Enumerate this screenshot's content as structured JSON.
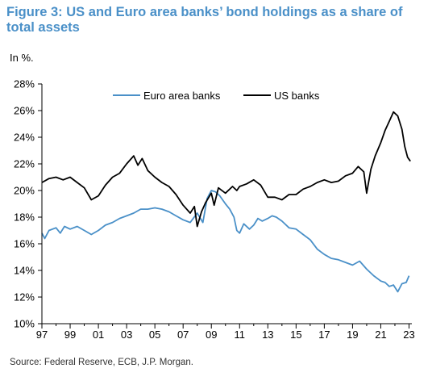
{
  "figure": {
    "title": "Figure 3: US and Euro area banks’ bond holdings as a share of total assets",
    "subtitle": "In %.",
    "source": "Source: Federal Reserve, ECB, J.P. Morgan."
  },
  "chart_data": {
    "type": "line",
    "title": "Figure 3: US and Euro area banks’ bond holdings as a share of total assets",
    "xlabel": "",
    "ylabel": "",
    "y_unit": "%",
    "xlim": [
      1997,
      2023.2
    ],
    "ylim": [
      10,
      28
    ],
    "x_ticks": [
      {
        "value": 1997,
        "label": "97"
      },
      {
        "value": 1999,
        "label": "99"
      },
      {
        "value": 2001,
        "label": "01"
      },
      {
        "value": 2003,
        "label": "03"
      },
      {
        "value": 2005,
        "label": "05"
      },
      {
        "value": 2007,
        "label": "07"
      },
      {
        "value": 2009,
        "label": "09"
      },
      {
        "value": 2011,
        "label": "11"
      },
      {
        "value": 2013,
        "label": "13"
      },
      {
        "value": 2015,
        "label": "15"
      },
      {
        "value": 2017,
        "label": "17"
      },
      {
        "value": 2019,
        "label": "19"
      },
      {
        "value": 2021,
        "label": "21"
      },
      {
        "value": 2023,
        "label": "23"
      }
    ],
    "y_ticks": [
      {
        "value": 10,
        "label": "10%"
      },
      {
        "value": 12,
        "label": "12%"
      },
      {
        "value": 14,
        "label": "14%"
      },
      {
        "value": 16,
        "label": "16%"
      },
      {
        "value": 18,
        "label": "18%"
      },
      {
        "value": 20,
        "label": "20%"
      },
      {
        "value": 22,
        "label": "22%"
      },
      {
        "value": 24,
        "label": "24%"
      },
      {
        "value": 26,
        "label": "26%"
      },
      {
        "value": 28,
        "label": "28%"
      }
    ],
    "grid": false,
    "legend": "top",
    "series": [
      {
        "name": "Euro area banks",
        "color": "#4a90c8",
        "points": [
          [
            1997.0,
            16.8
          ],
          [
            1997.2,
            16.4
          ],
          [
            1997.5,
            17.0
          ],
          [
            1998.0,
            17.2
          ],
          [
            1998.3,
            16.8
          ],
          [
            1998.6,
            17.3
          ],
          [
            1999.0,
            17.1
          ],
          [
            1999.5,
            17.3
          ],
          [
            2000.0,
            17.0
          ],
          [
            2000.5,
            16.7
          ],
          [
            2001.0,
            17.0
          ],
          [
            2001.5,
            17.4
          ],
          [
            2002.0,
            17.6
          ],
          [
            2002.5,
            17.9
          ],
          [
            2003.0,
            18.1
          ],
          [
            2003.5,
            18.3
          ],
          [
            2004.0,
            18.6
          ],
          [
            2004.5,
            18.6
          ],
          [
            2005.0,
            18.7
          ],
          [
            2005.5,
            18.6
          ],
          [
            2006.0,
            18.4
          ],
          [
            2006.5,
            18.1
          ],
          [
            2007.0,
            17.8
          ],
          [
            2007.5,
            17.6
          ],
          [
            2008.0,
            18.3
          ],
          [
            2008.4,
            17.6
          ],
          [
            2008.7,
            19.4
          ],
          [
            2009.0,
            20.0
          ],
          [
            2009.3,
            19.9
          ],
          [
            2009.6,
            19.6
          ],
          [
            2010.0,
            19.0
          ],
          [
            2010.3,
            18.6
          ],
          [
            2010.6,
            18.0
          ],
          [
            2010.8,
            17.0
          ],
          [
            2011.0,
            16.8
          ],
          [
            2011.3,
            17.5
          ],
          [
            2011.7,
            17.1
          ],
          [
            2012.0,
            17.4
          ],
          [
            2012.3,
            17.9
          ],
          [
            2012.6,
            17.7
          ],
          [
            2013.0,
            17.9
          ],
          [
            2013.3,
            18.1
          ],
          [
            2013.6,
            18.0
          ],
          [
            2014.0,
            17.7
          ],
          [
            2014.5,
            17.2
          ],
          [
            2015.0,
            17.1
          ],
          [
            2015.5,
            16.7
          ],
          [
            2016.0,
            16.3
          ],
          [
            2016.5,
            15.6
          ],
          [
            2017.0,
            15.2
          ],
          [
            2017.5,
            14.9
          ],
          [
            2018.0,
            14.8
          ],
          [
            2018.5,
            14.6
          ],
          [
            2019.0,
            14.4
          ],
          [
            2019.5,
            14.7
          ],
          [
            2020.0,
            14.1
          ],
          [
            2020.5,
            13.6
          ],
          [
            2021.0,
            13.2
          ],
          [
            2021.3,
            13.1
          ],
          [
            2021.6,
            12.8
          ],
          [
            2021.9,
            12.9
          ],
          [
            2022.2,
            12.4
          ],
          [
            2022.5,
            13.0
          ],
          [
            2022.8,
            13.1
          ],
          [
            2023.0,
            13.6
          ]
        ]
      },
      {
        "name": "US banks",
        "color": "#000000",
        "points": [
          [
            1997.0,
            20.6
          ],
          [
            1997.5,
            20.9
          ],
          [
            1998.0,
            21.0
          ],
          [
            1998.5,
            20.8
          ],
          [
            1999.0,
            21.0
          ],
          [
            1999.5,
            20.6
          ],
          [
            2000.0,
            20.2
          ],
          [
            2000.5,
            19.3
          ],
          [
            2001.0,
            19.6
          ],
          [
            2001.5,
            20.4
          ],
          [
            2002.0,
            21.0
          ],
          [
            2002.5,
            21.3
          ],
          [
            2003.0,
            22.0
          ],
          [
            2003.5,
            22.6
          ],
          [
            2003.8,
            21.9
          ],
          [
            2004.1,
            22.4
          ],
          [
            2004.5,
            21.5
          ],
          [
            2005.0,
            21.0
          ],
          [
            2005.5,
            20.6
          ],
          [
            2006.0,
            20.3
          ],
          [
            2006.5,
            19.7
          ],
          [
            2007.0,
            18.9
          ],
          [
            2007.5,
            18.3
          ],
          [
            2007.8,
            18.8
          ],
          [
            2008.0,
            17.3
          ],
          [
            2008.3,
            18.4
          ],
          [
            2008.6,
            19.1
          ],
          [
            2009.0,
            19.8
          ],
          [
            2009.2,
            18.9
          ],
          [
            2009.5,
            20.2
          ],
          [
            2010.0,
            19.8
          ],
          [
            2010.5,
            20.3
          ],
          [
            2010.8,
            20.0
          ],
          [
            2011.0,
            20.3
          ],
          [
            2011.5,
            20.5
          ],
          [
            2012.0,
            20.8
          ],
          [
            2012.5,
            20.4
          ],
          [
            2013.0,
            19.5
          ],
          [
            2013.5,
            19.5
          ],
          [
            2014.0,
            19.3
          ],
          [
            2014.5,
            19.7
          ],
          [
            2015.0,
            19.7
          ],
          [
            2015.5,
            20.1
          ],
          [
            2016.0,
            20.3
          ],
          [
            2016.5,
            20.6
          ],
          [
            2017.0,
            20.8
          ],
          [
            2017.5,
            20.6
          ],
          [
            2018.0,
            20.7
          ],
          [
            2018.5,
            21.1
          ],
          [
            2019.0,
            21.3
          ],
          [
            2019.4,
            21.8
          ],
          [
            2019.8,
            21.4
          ],
          [
            2020.0,
            19.8
          ],
          [
            2020.3,
            21.6
          ],
          [
            2020.6,
            22.6
          ],
          [
            2021.0,
            23.6
          ],
          [
            2021.3,
            24.5
          ],
          [
            2021.6,
            25.2
          ],
          [
            2021.9,
            25.9
          ],
          [
            2022.2,
            25.6
          ],
          [
            2022.5,
            24.6
          ],
          [
            2022.7,
            23.3
          ],
          [
            2022.9,
            22.5
          ],
          [
            2023.1,
            22.2
          ]
        ]
      }
    ]
  }
}
